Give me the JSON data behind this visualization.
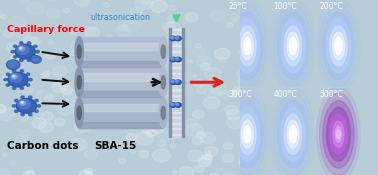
{
  "left_bg_color": "#b8cdd8",
  "right_bg_color": "#000000",
  "divider_color": "#ffffff",
  "labels": {
    "capillary_force": "Capillary force",
    "capillary_force_color": "#ff0000",
    "carbon_dots": "Carbon dots",
    "sba15": "SBA-15",
    "ultrasonication": "ultrasonication",
    "ultrasonication_color": "#3388cc"
  },
  "temperatures": [
    "25°C",
    "100°C",
    "200°C",
    "300°C",
    "400°C",
    "500°C"
  ],
  "bubble_color": "#d8eaf4",
  "tube_body_color": "#b0bcd0",
  "tube_highlight_color": "#d0d8e8",
  "tube_dark_color": "#8898b0",
  "tube_hole_color": "#606878",
  "plate_color": "#c8d4e0",
  "plate_stripe_color": "#e0e8f0",
  "dot_color": "#2855b0",
  "dot_highlight": "#7099dd",
  "arrow_color": "#111111",
  "red_arrow_color": "#dd2222",
  "green_arrow_color": "#55cc88",
  "glow_blue": "#99bbff",
  "glow_white": "#ffffff",
  "glow_purple": "#9944bb",
  "figsize": [
    3.78,
    1.75
  ],
  "dpi": 100
}
